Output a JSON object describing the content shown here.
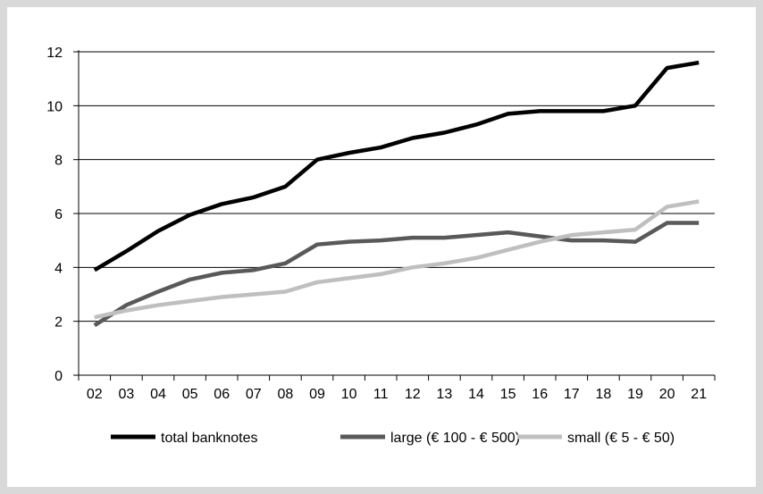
{
  "chart_data": {
    "type": "line",
    "title": "",
    "xlabel": "",
    "ylabel": "",
    "categories": [
      "02",
      "03",
      "04",
      "05",
      "06",
      "07",
      "08",
      "09",
      "10",
      "11",
      "12",
      "13",
      "14",
      "15",
      "16",
      "17",
      "18",
      "19",
      "20",
      "21"
    ],
    "ylim": [
      0,
      12
    ],
    "yticks": [
      0,
      2,
      4,
      6,
      8,
      10,
      12
    ],
    "grid": true,
    "legend_position": "bottom",
    "series": [
      {
        "name": "total banknotes",
        "color": "#000000",
        "values": [
          3.9,
          4.6,
          5.35,
          5.95,
          6.35,
          6.6,
          7.0,
          8.0,
          8.25,
          8.45,
          8.8,
          9.0,
          9.3,
          9.7,
          9.8,
          9.8,
          9.8,
          10.0,
          11.4,
          11.6
        ]
      },
      {
        "name": "large (€ 100 - € 500)",
        "color": "#595959",
        "values": [
          1.85,
          2.6,
          3.1,
          3.55,
          3.8,
          3.9,
          4.15,
          4.85,
          4.95,
          5.0,
          5.1,
          5.1,
          5.2,
          5.3,
          5.15,
          5.0,
          5.0,
          4.95,
          5.65,
          5.65
        ]
      },
      {
        "name": "small (€ 5 - € 50)",
        "color": "#bfbfbf",
        "values": [
          2.15,
          2.4,
          2.6,
          2.75,
          2.9,
          3.0,
          3.1,
          3.45,
          3.6,
          3.75,
          4.0,
          4.15,
          4.35,
          4.65,
          4.95,
          5.2,
          5.3,
          5.4,
          6.25,
          6.45
        ]
      }
    ]
  }
}
